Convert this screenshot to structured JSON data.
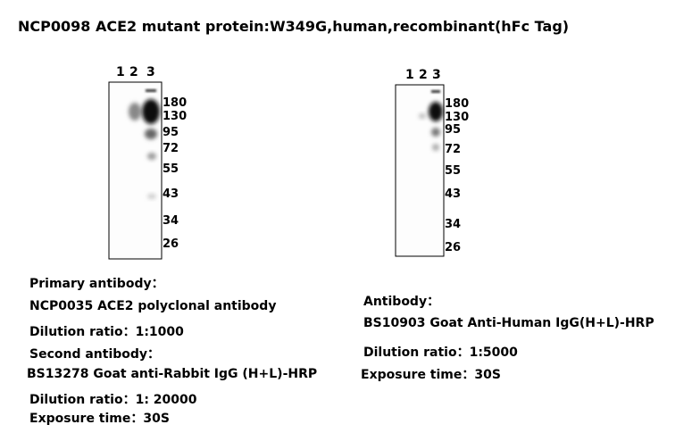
{
  "title": "NCP0098  ACE2 mutant protein:W349G,human,recombinant(hFc Tag)",
  "blots": [
    {
      "lanes": [
        "1",
        "2",
        "3"
      ],
      "markers": [
        "180",
        "130",
        "95",
        "72",
        "55",
        "43",
        "34",
        "26"
      ],
      "notes": [
        "Primary antibody：",
        "NCP0035  ACE2 polyclonal antibody",
        "Dilution ratio：1:1000",
        "Second antibody：",
        "BS13278 Goat anti-Rabbit IgG (H+L)-HRP",
        "Dilution ratio：1: 20000",
        "Exposure time：30S"
      ]
    },
    {
      "lanes": [
        "1",
        "2",
        "3"
      ],
      "markers": [
        "180",
        "130",
        "95",
        "72",
        "55",
        "43",
        "34",
        "26"
      ],
      "notes": [
        "Antibody：",
        "BS10903 Goat Anti-Human IgG(H+L)-HRP",
        "Dilution ratio：1:5000",
        "Exposure time：30S"
      ]
    }
  ]
}
